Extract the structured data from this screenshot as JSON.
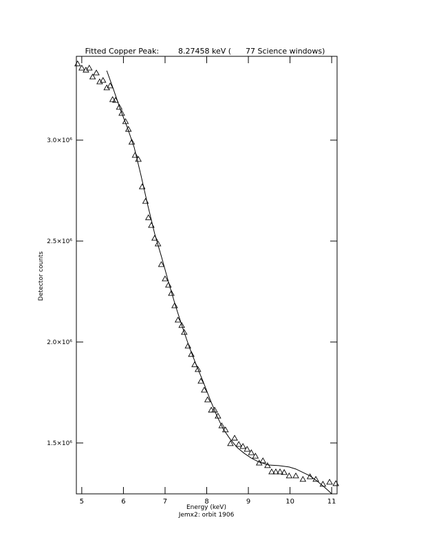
{
  "chart_data": {
    "type": "scatter",
    "title": "Fitted Copper Peak:        8.27458 keV (      77 Science windows)",
    "x_label": "Energy (keV)",
    "caption": "Jemx2: orbit 1906",
    "y_label": "Detector counts",
    "xlim": [
      4.87,
      11.13
    ],
    "ylim": [
      1248000,
      3415000
    ],
    "xticks": [
      5,
      6,
      7,
      8,
      9,
      10,
      11
    ],
    "yticks": [
      {
        "value": 1500000,
        "label": "1.5×10⁶"
      },
      {
        "value": 2000000,
        "label": "2.0×10⁶"
      },
      {
        "value": 2500000,
        "label": "2.5×10⁶"
      },
      {
        "value": 3000000,
        "label": "3.0×10⁶"
      }
    ],
    "color": "#000000",
    "series": [
      {
        "marker": "triangle",
        "x": [
          4.9,
          5.0,
          5.1,
          5.18,
          5.26,
          5.35,
          5.43,
          5.51,
          5.6,
          5.68,
          5.74,
          5.81,
          5.9,
          5.96,
          6.05,
          6.12,
          6.2,
          6.28,
          6.36,
          6.45,
          6.53,
          6.6,
          6.67,
          6.75,
          6.83,
          6.91,
          7.0,
          7.08,
          7.15,
          7.23,
          7.31,
          7.4,
          7.46,
          7.55,
          7.63,
          7.71,
          7.79,
          7.86,
          7.94,
          8.02,
          8.11,
          8.19,
          8.27,
          8.36,
          8.45,
          8.57,
          8.67,
          8.77,
          8.87,
          8.97,
          9.07,
          9.17,
          9.26,
          9.35,
          9.46,
          9.56,
          9.66,
          9.76,
          9.86,
          9.98,
          10.14,
          10.31,
          10.48,
          10.62,
          10.79,
          10.95,
          11.1
        ],
        "values": [
          3378000,
          3357000,
          3347000,
          3357000,
          3313000,
          3333000,
          3289000,
          3296000,
          3259000,
          3269000,
          3201000,
          3197000,
          3163000,
          3133000,
          3092000,
          3054000,
          2990000,
          2925000,
          2905000,
          2769000,
          2697000,
          2616000,
          2578000,
          2514000,
          2486000,
          2384000,
          2313000,
          2282000,
          2241000,
          2180000,
          2109000,
          2082000,
          2048000,
          1980000,
          1939000,
          1888000,
          1864000,
          1806000,
          1762000,
          1714000,
          1663000,
          1663000,
          1633000,
          1585000,
          1565000,
          1497000,
          1524000,
          1493000,
          1483000,
          1469000,
          1452000,
          1435000,
          1401000,
          1412000,
          1388000,
          1357000,
          1357000,
          1357000,
          1354000,
          1337000,
          1337000,
          1320000,
          1333000,
          1320000,
          1296000,
          1306000,
          1299000
        ]
      },
      {
        "marker": "none",
        "x": [
          5.6,
          5.76,
          5.93,
          6.09,
          6.26,
          6.42,
          6.59,
          6.75,
          6.92,
          7.08,
          7.25,
          7.41,
          7.58,
          7.74,
          7.91,
          8.07,
          8.24,
          8.4,
          8.57,
          8.74,
          8.9,
          9.07,
          9.23,
          9.48,
          9.73,
          9.98,
          10.14,
          10.31,
          10.48,
          10.64,
          10.8,
          10.93,
          11.0
        ],
        "values": [
          3344000,
          3252000,
          3150000,
          3065000,
          2963000,
          2827000,
          2673000,
          2537000,
          2418000,
          2299000,
          2180000,
          2078000,
          1976000,
          1891000,
          1806000,
          1721000,
          1636000,
          1568000,
          1517000,
          1476000,
          1449000,
          1425000,
          1408000,
          1391000,
          1388000,
          1381000,
          1371000,
          1354000,
          1337000,
          1313000,
          1286000,
          1262000,
          1248000
        ]
      }
    ]
  }
}
